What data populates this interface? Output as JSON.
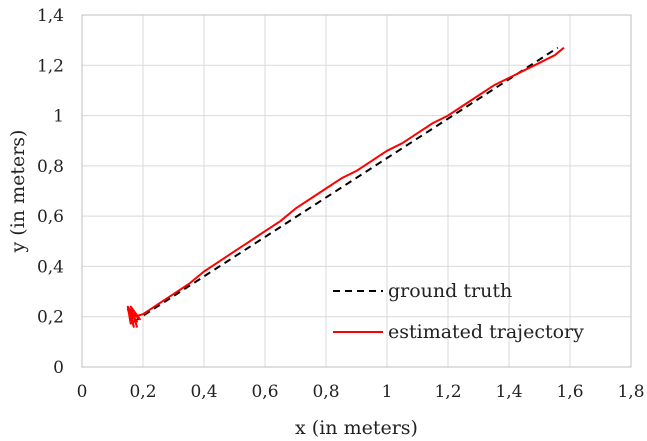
{
  "chart_data": {
    "type": "line",
    "xlabel": "x (in meters)",
    "ylabel": "y (in meters)",
    "xlim": [
      0,
      1.8
    ],
    "ylim": [
      0,
      1.4
    ],
    "xticks": [
      0,
      0.2,
      0.4,
      0.6,
      0.8,
      1,
      1.2,
      1.4,
      1.6,
      1.8
    ],
    "yticks": [
      0,
      0.2,
      0.4,
      0.6,
      0.8,
      1,
      1.2,
      1.4
    ],
    "xtick_labels": [
      "0",
      "0,2",
      "0,4",
      "0,6",
      "0,8",
      "1",
      "1,2",
      "1,4",
      "1,6",
      "1,8"
    ],
    "ytick_labels": [
      "0",
      "0,2",
      "0,4",
      "0,6",
      "0,8",
      "1",
      "1,2",
      "1,4"
    ],
    "grid": true,
    "legend_position": "bottom-right",
    "series": [
      {
        "name": "ground truth",
        "style": "dashed",
        "color": "#000000",
        "x": [
          0.17,
          1.56
        ],
        "y": [
          0.18,
          1.27
        ]
      },
      {
        "name": "estimated trajectory",
        "style": "solid",
        "color": "#ff0000",
        "x": [
          0.16,
          0.15,
          0.18,
          0.15,
          0.17,
          0.16,
          0.19,
          0.16,
          0.18,
          0.17,
          0.2,
          0.25,
          0.3,
          0.35,
          0.4,
          0.45,
          0.5,
          0.55,
          0.6,
          0.65,
          0.7,
          0.75,
          0.8,
          0.85,
          0.9,
          0.95,
          1.0,
          1.05,
          1.1,
          1.15,
          1.2,
          1.25,
          1.3,
          1.35,
          1.4,
          1.45,
          1.5,
          1.55,
          1.58
        ],
        "y": [
          0.17,
          0.24,
          0.18,
          0.23,
          0.16,
          0.22,
          0.19,
          0.24,
          0.16,
          0.2,
          0.21,
          0.25,
          0.29,
          0.33,
          0.38,
          0.42,
          0.46,
          0.5,
          0.54,
          0.58,
          0.63,
          0.67,
          0.71,
          0.75,
          0.78,
          0.82,
          0.86,
          0.89,
          0.93,
          0.97,
          1.0,
          1.04,
          1.08,
          1.12,
          1.15,
          1.18,
          1.21,
          1.24,
          1.27
        ]
      }
    ]
  }
}
